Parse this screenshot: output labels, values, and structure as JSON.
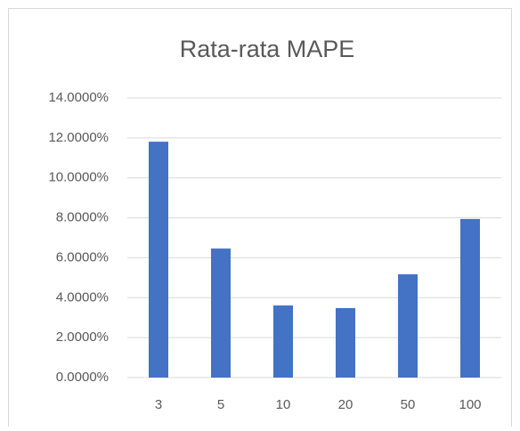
{
  "chart_data": {
    "type": "bar",
    "title": "Rata-rata MAPE",
    "categories": [
      "3",
      "5",
      "10",
      "20",
      "50",
      "100"
    ],
    "values": [
      11.81,
      6.46,
      3.61,
      3.48,
      5.17,
      7.94
    ],
    "color": "#4472c4",
    "ylim": [
      0,
      14
    ],
    "yticks": [
      {
        "value": 0,
        "label": "0.0000%"
      },
      {
        "value": 2,
        "label": "2.0000%"
      },
      {
        "value": 4,
        "label": "4.0000%"
      },
      {
        "value": 6,
        "label": "6.0000%"
      },
      {
        "value": 8,
        "label": "8.0000%"
      },
      {
        "value": 10,
        "label": "10.0000%"
      },
      {
        "value": 12,
        "label": "12.0000%"
      },
      {
        "value": 14,
        "label": "14.0000%"
      }
    ],
    "grid": true
  }
}
